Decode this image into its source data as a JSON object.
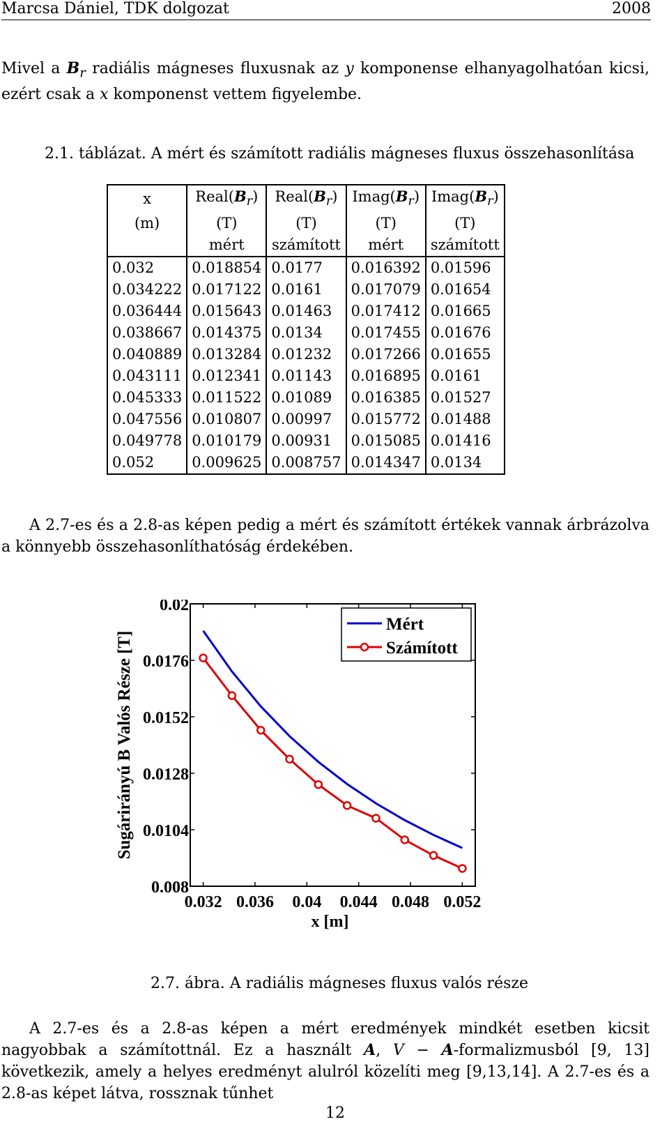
{
  "header": {
    "left": "Marcsa Dániel, TDK dolgozat",
    "right": "2008"
  },
  "p1": {
    "a": "Mivel a ",
    "B": "B",
    "sub": "r",
    "b": " radiális mágneses fluxusnak az ",
    "y": "y",
    "c": " komponense elhanyagolhatóan kicsi, ezért csak a ",
    "x": "x",
    "d": " komponenst vettem figyelembe."
  },
  "table_caption": "2.1. táblázat. A mért és számított radiális mágneses fluxus összehasonlítása",
  "table": {
    "headers": [
      [
        "x",
        "(m)",
        ""
      ],
      [
        "Real(B_r)",
        "(T)",
        "mért"
      ],
      [
        "Real(B_r)",
        "(T)",
        "számított"
      ],
      [
        "Imag(B_r)",
        "(T)",
        "mért"
      ],
      [
        "Imag(B_r)",
        "(T)",
        "számított"
      ]
    ],
    "rows": [
      [
        "0.032",
        "0.018854",
        "0.0177",
        "0.016392",
        "0.01596"
      ],
      [
        "0.034222",
        "0.017122",
        "0.0161",
        "0.017079",
        "0.01654"
      ],
      [
        "0.036444",
        "0.015643",
        "0.01463",
        "0.017412",
        "0.01665"
      ],
      [
        "0.038667",
        "0.014375",
        "0.0134",
        "0.017455",
        "0.01676"
      ],
      [
        "0.040889",
        "0.013284",
        "0.01232",
        "0.017266",
        "0.01655"
      ],
      [
        "0.043111",
        "0.012341",
        "0.01143",
        "0.016895",
        "0.0161"
      ],
      [
        "0.045333",
        "0.011522",
        "0.01089",
        "0.016385",
        "0.01527"
      ],
      [
        "0.047556",
        "0.010807",
        "0.00997",
        "0.015772",
        "0.01488"
      ],
      [
        "0.049778",
        "0.010179",
        "0.00931",
        "0.015085",
        "0.01416"
      ],
      [
        "0.052",
        "0.009625",
        "0.008757",
        "0.014347",
        "0.0134"
      ]
    ]
  },
  "p2": "A 2.7-es és a 2.8-as képen pedig a mért és számított értékek vannak árbrázolva a könnyebb összehasonlíthatóság érdekében.",
  "figure_caption": "2.7. ábra. A radiális mágneses fluxus valós része",
  "p3": {
    "a": "A 2.7-es és a 2.8-as képen a mért eredmények mindkét esetben kicsit nagyobbak a számítottnál. Ez a használt ",
    "A1": "A",
    "b": ", ",
    "V": "V",
    "c": " − ",
    "A2": "A",
    "d": "-formalizmusból [9, 13] következik, amely a helyes eredményt alulról közelíti meg [9,13,14]. A 2.7-es és a 2.8-as képet látva, rossznak tűnhet"
  },
  "page_number": "12",
  "chart_data": {
    "type": "line",
    "xlabel": "x [m]",
    "ylabel": "Sugárirányú B Valós Része [T]",
    "xlim": [
      0.031,
      0.053
    ],
    "ylim": [
      0.008,
      0.02
    ],
    "xticks": [
      "0.032",
      "0.036",
      "0.04",
      "0.044",
      "0.048",
      "0.052"
    ],
    "yticks": [
      "0.008",
      "0.0104",
      "0.0128",
      "0.0152",
      "0.0176",
      "0.02"
    ],
    "legend_position": "top-right",
    "series": [
      {
        "name": "Mért",
        "color": "#0000cc",
        "marker": "none",
        "x": [
          0.032,
          0.034222,
          0.036444,
          0.038667,
          0.040889,
          0.043111,
          0.045333,
          0.047556,
          0.049778,
          0.052
        ],
        "y": [
          0.018854,
          0.017122,
          0.015643,
          0.014375,
          0.013284,
          0.012341,
          0.011522,
          0.010807,
          0.010179,
          0.009625
        ]
      },
      {
        "name": "Számított",
        "color": "#dd0000",
        "marker": "circle",
        "x": [
          0.032,
          0.034222,
          0.036444,
          0.038667,
          0.040889,
          0.043111,
          0.045333,
          0.047556,
          0.049778,
          0.052
        ],
        "y": [
          0.0177,
          0.0161,
          0.01463,
          0.0134,
          0.01232,
          0.01143,
          0.01089,
          0.00997,
          0.00931,
          0.008757
        ]
      }
    ]
  }
}
